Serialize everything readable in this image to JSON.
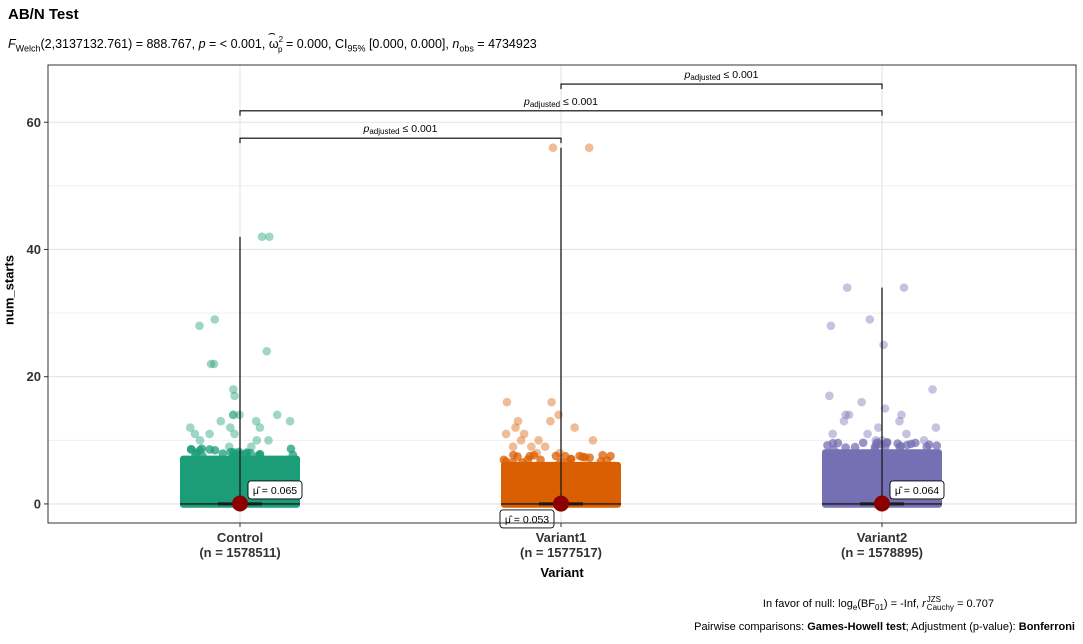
{
  "title": "AB/N Test",
  "subtitle": {
    "stat_label": "F",
    "stat_sub": "Welch",
    "stat_rest": "(2,3137132.761) = 888.767, ",
    "p_label": "p",
    "p_rest": " = < 0.001, ",
    "omega": "ω",
    "omega_sup": "2",
    "omega_sub": "p",
    "omega_rest": " = 0.000, CI",
    "ci_sub": "95%",
    "ci_rest": " [0.000, 0.000], ",
    "n_label": "n",
    "n_sub": "obs",
    "n_rest": " = 4734923"
  },
  "caption": {
    "line1_a": "In favor of null: log",
    "line1_e": "e",
    "line1_b": "(BF",
    "line1_01": "01",
    "line1_c": ") = -Inf, ",
    "line1_r": "r",
    "line1_jzs": "JZS",
    "line1_cauchy": "Cauchy",
    "line1_d": " = 0.707",
    "line2_a": "Pairwise comparisons: ",
    "line2_test": "Games-Howell test",
    "line2_b": "; Adjustment (p-value): ",
    "line2_adj": "Bonferroni"
  },
  "chart_data": {
    "type": "scatter",
    "xlabel": "Variant",
    "ylabel": "num_starts",
    "ylim": [
      -3,
      69
    ],
    "yticks": [
      0,
      20,
      40,
      60
    ],
    "grid": true,
    "categories": [
      "Control",
      "Variant1",
      "Variant2"
    ],
    "n_labels": [
      "(n = 1578511)",
      "(n = 1577517)",
      "(n = 1578895)"
    ],
    "colors": [
      "#1b9e77",
      "#d95f02",
      "#7570b3"
    ],
    "means": [
      0.065,
      0.053,
      0.064
    ],
    "mean_labels": [
      "μ̂ = 0.065",
      "μ̂ = 0.053",
      "μ̂ = 0.064"
    ],
    "mean_color": "#8b0000",
    "max_values": [
      42,
      56,
      34
    ],
    "dense_max": [
      8,
      7,
      9
    ],
    "outliers": [
      [
        9,
        9,
        10,
        10,
        10,
        11,
        11,
        11,
        12,
        12,
        12,
        13,
        13,
        13,
        14,
        14,
        14,
        14,
        17,
        18,
        22,
        22,
        24,
        28,
        29,
        42
      ],
      [
        8,
        8,
        9,
        9,
        9,
        10,
        10,
        10,
        11,
        11,
        12,
        12,
        13,
        13,
        14,
        16,
        16,
        56
      ],
      [
        10,
        10,
        10,
        11,
        11,
        11,
        12,
        12,
        13,
        13,
        14,
        14,
        14,
        15,
        16,
        17,
        18,
        25,
        28,
        29,
        34
      ]
    ],
    "comparisons": [
      {
        "from": 0,
        "to": 1,
        "y": 57.5,
        "label": "adjusted"
      },
      {
        "from": 0,
        "to": 2,
        "y": 61.8,
        "label": "adjusted"
      },
      {
        "from": 1,
        "to": 2,
        "y": 66.0,
        "label": "adjusted"
      }
    ],
    "comparison_p": "p",
    "comparison_rest": " ≤ 0.001"
  }
}
